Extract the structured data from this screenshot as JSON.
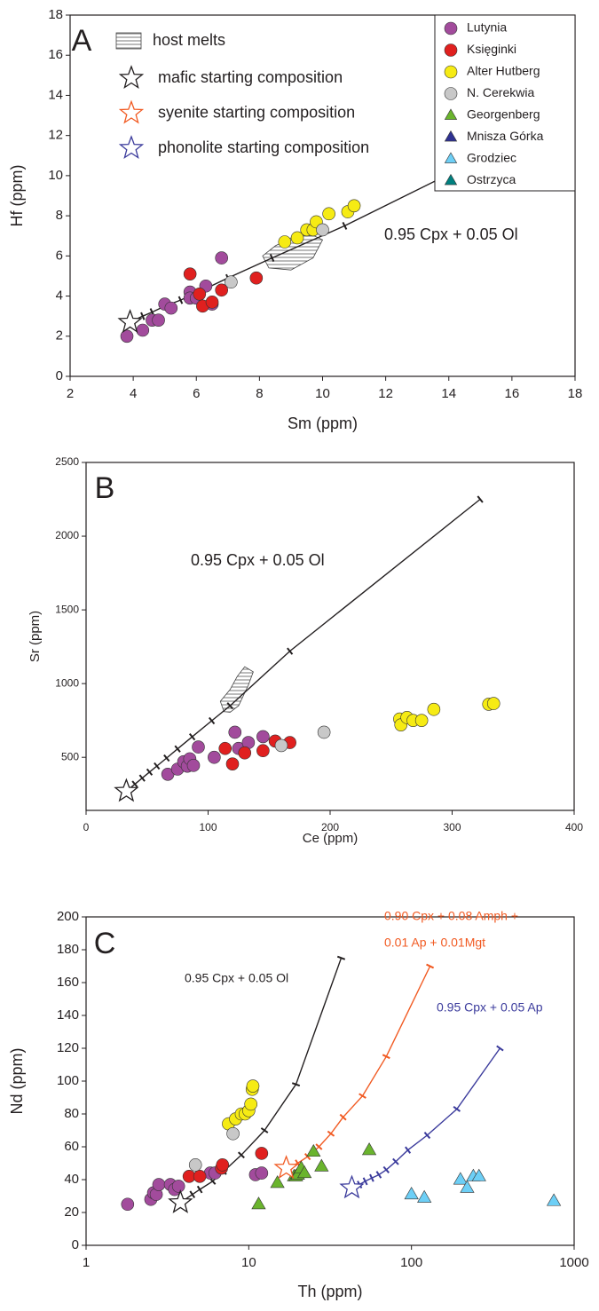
{
  "chart_data": [
    {
      "type": "scatter",
      "panel_label": "A",
      "x_label": "Sm (ppm)",
      "y_label": "Hf (ppm)",
      "xlim": [
        2,
        18
      ],
      "ylim": [
        0,
        18
      ],
      "xticks": [
        2,
        4,
        6,
        8,
        10,
        12,
        14,
        16,
        18
      ],
      "yticks": [
        0,
        2,
        4,
        6,
        8,
        10,
        12,
        14,
        16,
        18
      ],
      "legend": "upper right",
      "series": [
        {
          "name": "Lutynia",
          "color": "#a24b9c",
          "marker": "circle",
          "x": [
            3.8,
            4.3,
            4.6,
            4.8,
            5.0,
            5.2,
            5.8,
            5.8,
            6.0,
            6.3,
            6.5,
            6.8
          ],
          "values": [
            2.0,
            2.3,
            2.8,
            2.8,
            3.6,
            3.4,
            4.2,
            3.9,
            3.9,
            4.5,
            3.6,
            5.9
          ]
        },
        {
          "name": "Księginki",
          "color": "#e0201f",
          "marker": "circle",
          "x": [
            5.8,
            6.1,
            6.2,
            6.5,
            6.8,
            7.9
          ],
          "values": [
            5.1,
            4.1,
            3.5,
            3.7,
            4.3,
            4.9
          ]
        },
        {
          "name": "Alter Hutberg",
          "color": "#f6eb14",
          "marker": "circle",
          "x": [
            8.8,
            9.2,
            9.5,
            9.7,
            9.8,
            10.2,
            10.8,
            11.0
          ],
          "values": [
            6.7,
            6.9,
            7.3,
            7.3,
            7.7,
            8.1,
            8.2,
            8.5
          ]
        },
        {
          "name": "N. Cerekwia",
          "color": "#c8c8c8",
          "marker": "circle",
          "x": [
            7.1,
            10.0
          ],
          "values": [
            4.7,
            7.3
          ]
        },
        {
          "name": "Georgenberg",
          "color": "#6ab42d",
          "marker": "triangle",
          "x": [],
          "values": []
        },
        {
          "name": "Mnisza Górka",
          "color": "#2e3192",
          "marker": "triangle",
          "x": [],
          "values": []
        },
        {
          "name": "Grodziec",
          "color": "#6dcff6",
          "marker": "triangle",
          "x": [],
          "values": []
        },
        {
          "name": "Ostrzyca",
          "color": "#00807f",
          "marker": "triangle",
          "x": [],
          "values": []
        }
      ],
      "host_melts": {
        "label": "host melts",
        "x": [
          8.1,
          8.3,
          9.0,
          9.7,
          10.0,
          9.6,
          9.0,
          8.5
        ],
        "y": [
          6.0,
          5.4,
          5.3,
          5.9,
          6.8,
          7.1,
          6.9,
          6.5
        ]
      },
      "star_legend": [
        {
          "label": "mafic starting composition",
          "color": "#231f20"
        },
        {
          "label": "syenite starting composition",
          "color": "#f15a22"
        },
        {
          "label": "phonolite starting composition",
          "color": "#3b3b9c"
        }
      ],
      "models": [
        {
          "label": [
            "0.95 Cpx + 0.05 Ol"
          ],
          "color": "#231f20",
          "star": true,
          "x": [
            3.9,
            4.3,
            4.6,
            5.0,
            5.5,
            6.2,
            7.0,
            8.4,
            10.7,
            14.3
          ],
          "y": [
            2.7,
            3.0,
            3.2,
            3.5,
            3.8,
            4.3,
            4.9,
            5.9,
            7.5,
            10.3
          ]
        }
      ]
    },
    {
      "type": "scatter",
      "panel_label": "B",
      "x_label": "Ce (ppm)",
      "y_label": "Sr (ppm)",
      "xlim": [
        0,
        400
      ],
      "ylim": [
        140,
        2500
      ],
      "xticks": [
        0,
        100,
        200,
        300,
        400
      ],
      "yticks": [
        500,
        1000,
        1500,
        2000,
        2500
      ],
      "series": [
        {
          "color": "#a24b9c",
          "marker": "circle",
          "x": [
            67,
            75,
            80,
            83,
            85,
            88,
            92,
            105,
            122,
            125,
            133,
            145
          ],
          "values": [
            385,
            420,
            470,
            440,
            490,
            445,
            570,
            500,
            670,
            560,
            600,
            640
          ]
        },
        {
          "color": "#e0201f",
          "marker": "circle",
          "x": [
            114,
            120,
            130,
            145,
            155,
            167
          ],
          "values": [
            560,
            455,
            530,
            545,
            610,
            600
          ]
        },
        {
          "color": "#f6eb14",
          "marker": "circle",
          "x": [
            257,
            258,
            263,
            268,
            275,
            285,
            330,
            334
          ],
          "values": [
            760,
            720,
            770,
            750,
            750,
            825,
            860,
            865
          ]
        },
        {
          "color": "#c8c8c8",
          "marker": "circle",
          "x": [
            160,
            195
          ],
          "values": [
            580,
            670
          ]
        }
      ],
      "host_melts": {
        "x": [
          113,
          110,
          118,
          124,
          130,
          137,
          133,
          125,
          118
        ],
        "y": [
          810,
          880,
          960,
          1050,
          1115,
          1080,
          990,
          850,
          805
        ]
      },
      "models": [
        {
          "label": [
            "0.95 Cpx + 0.05 Ol"
          ],
          "color": "#231f20",
          "star": true,
          "x": [
            33,
            40,
            46,
            52,
            58,
            66,
            75,
            87,
            103,
            118,
            167,
            323
          ],
          "y": [
            270,
            318,
            359,
            400,
            441,
            495,
            557,
            639,
            748,
            850,
            1220,
            2250
          ]
        }
      ]
    },
    {
      "type": "scatter",
      "panel_label": "C",
      "x_label": "Th (ppm)",
      "y_label": "Nd (ppm)",
      "xscale": "log",
      "xlim": [
        1,
        1000
      ],
      "ylim": [
        0,
        200
      ],
      "xticks": [
        1,
        10,
        100,
        1000
      ],
      "yticks": [
        0,
        20,
        40,
        60,
        80,
        100,
        120,
        140,
        160,
        180,
        200
      ],
      "series": [
        {
          "color": "#a24b9c",
          "marker": "circle",
          "x": [
            1.8,
            2.5,
            2.6,
            2.7,
            2.8,
            3.3,
            3.5,
            3.7,
            5.8,
            6.2,
            11,
            12
          ],
          "values": [
            25,
            28,
            32,
            31,
            37,
            37,
            34,
            36,
            44,
            44,
            43,
            44
          ]
        },
        {
          "color": "#e0201f",
          "marker": "circle",
          "x": [
            4.3,
            5,
            6.8,
            6.9,
            12
          ],
          "values": [
            42,
            42,
            47,
            49,
            56
          ]
        },
        {
          "color": "#f6eb14",
          "marker": "circle",
          "x": [
            7.5,
            8.3,
            9,
            9.5,
            10,
            10.3,
            10.5,
            10.6
          ],
          "values": [
            74,
            77,
            80,
            80,
            82,
            86,
            95,
            97
          ]
        },
        {
          "color": "#c8c8c8",
          "marker": "circle",
          "x": [
            4.7,
            8
          ],
          "values": [
            49,
            68
          ]
        },
        {
          "color": "#6ab42d",
          "marker": "triangle",
          "x": [
            11.5,
            15,
            19,
            19.5,
            20,
            21,
            22,
            25,
            28,
            55
          ],
          "values": [
            25,
            38,
            42,
            42,
            43,
            47,
            44,
            57,
            48,
            58
          ]
        },
        {
          "color": "#6dcff6",
          "marker": "triangle",
          "x": [
            100,
            120,
            200,
            220,
            240,
            260,
            750
          ],
          "values": [
            31,
            29,
            40,
            35,
            42,
            42,
            27
          ]
        }
      ],
      "models": [
        {
          "label": [
            "0.95 Cpx + 0.05 Ol"
          ],
          "color": "#231f20",
          "star": true,
          "x": [
            3.8,
            4.5,
            5,
            6,
            7,
            9,
            12.5,
            19.5,
            37
          ],
          "y": [
            26,
            31,
            34,
            39,
            45,
            55,
            70,
            98,
            175
          ]
        },
        {
          "label": [
            "0.90 Cpx + 0.08 Amph +",
            "0.01 Ap + 0.01Mgt"
          ],
          "color": "#f15a22",
          "star": true,
          "x": [
            17,
            20,
            23,
            27,
            32,
            38,
            50,
            70,
            130
          ],
          "y": [
            47,
            50,
            54,
            60,
            68,
            78,
            91,
            115,
            170
          ]
        },
        {
          "label": [
            "0.95 Cpx + 0.05 Ap"
          ],
          "color": "#3b3b9c",
          "star": true,
          "x": [
            43,
            48,
            52,
            57,
            63,
            70,
            80,
            95,
            125,
            190,
            350
          ],
          "y": [
            35,
            37,
            39,
            41,
            43,
            46,
            51,
            58,
            67,
            83,
            120
          ]
        }
      ]
    }
  ]
}
